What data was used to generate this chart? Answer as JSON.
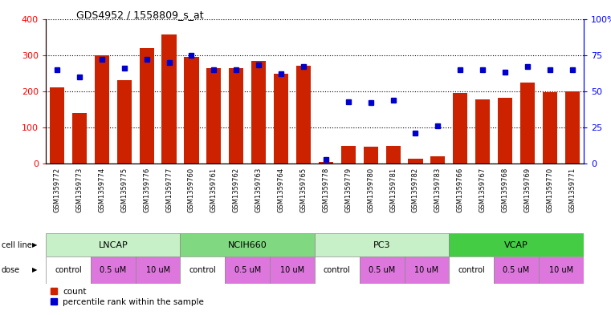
{
  "title": "GDS4952 / 1558809_s_at",
  "samples": [
    "GSM1359772",
    "GSM1359773",
    "GSM1359774",
    "GSM1359775",
    "GSM1359776",
    "GSM1359777",
    "GSM1359760",
    "GSM1359761",
    "GSM1359762",
    "GSM1359763",
    "GSM1359764",
    "GSM1359765",
    "GSM1359778",
    "GSM1359779",
    "GSM1359780",
    "GSM1359781",
    "GSM1359782",
    "GSM1359783",
    "GSM1359766",
    "GSM1359767",
    "GSM1359768",
    "GSM1359769",
    "GSM1359770",
    "GSM1359771"
  ],
  "counts": [
    210,
    140,
    300,
    230,
    320,
    358,
    295,
    263,
    265,
    283,
    248,
    270,
    5,
    50,
    48,
    50,
    13,
    20,
    195,
    178,
    182,
    225,
    197,
    200
  ],
  "percentile_ranks": [
    65,
    60,
    72,
    66,
    72,
    70,
    75,
    65,
    65,
    68,
    62,
    67,
    3,
    43,
    42,
    44,
    21,
    26,
    65,
    65,
    63,
    67,
    65,
    65
  ],
  "cell_lines": [
    {
      "name": "LNCAP",
      "start": 0,
      "end": 6,
      "color": "#c8f0c8"
    },
    {
      "name": "NCIH660",
      "start": 6,
      "end": 12,
      "color": "#80d880"
    },
    {
      "name": "PC3",
      "start": 12,
      "end": 18,
      "color": "#c8f0c8"
    },
    {
      "name": "VCAP",
      "start": 18,
      "end": 24,
      "color": "#44cc44"
    }
  ],
  "dose_groups": [
    {
      "name": "control",
      "start": 0,
      "end": 2,
      "color": "#ffffff"
    },
    {
      "name": "0.5 uM",
      "start": 2,
      "end": 4,
      "color": "#dd77dd"
    },
    {
      "name": "10 uM",
      "start": 4,
      "end": 6,
      "color": "#dd77dd"
    },
    {
      "name": "control",
      "start": 6,
      "end": 8,
      "color": "#ffffff"
    },
    {
      "name": "0.5 uM",
      "start": 8,
      "end": 10,
      "color": "#dd77dd"
    },
    {
      "name": "10 uM",
      "start": 10,
      "end": 12,
      "color": "#dd77dd"
    },
    {
      "name": "control",
      "start": 12,
      "end": 14,
      "color": "#ffffff"
    },
    {
      "name": "0.5 uM",
      "start": 14,
      "end": 16,
      "color": "#dd77dd"
    },
    {
      "name": "10 uM",
      "start": 16,
      "end": 18,
      "color": "#dd77dd"
    },
    {
      "name": "control",
      "start": 18,
      "end": 20,
      "color": "#ffffff"
    },
    {
      "name": "0.5 uM",
      "start": 20,
      "end": 22,
      "color": "#dd77dd"
    },
    {
      "name": "10 uM",
      "start": 22,
      "end": 24,
      "color": "#dd77dd"
    }
  ],
  "bar_color": "#cc2200",
  "dot_color": "#0000cc",
  "left_ylim": [
    0,
    400
  ],
  "right_ylim": [
    0,
    100
  ],
  "left_yticks": [
    0,
    100,
    200,
    300,
    400
  ],
  "right_yticks": [
    0,
    25,
    50,
    75,
    100
  ],
  "right_yticklabels": [
    "0",
    "25",
    "50",
    "75",
    "100%"
  ],
  "bg_color": "#ffffff",
  "xtick_bg": "#d8d8d8",
  "figsize": [
    7.61,
    3.93
  ],
  "dpi": 100
}
